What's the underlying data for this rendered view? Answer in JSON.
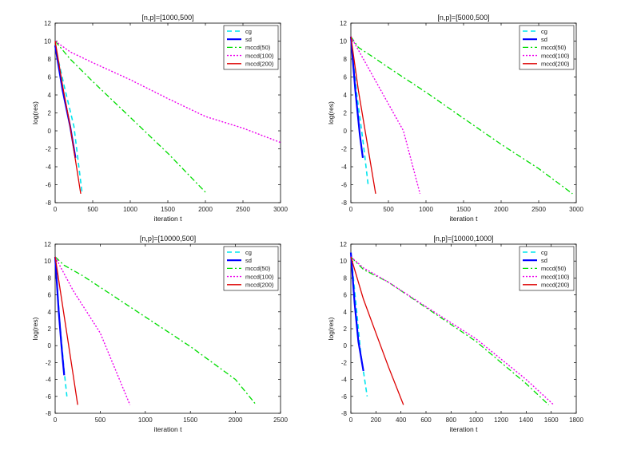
{
  "series_styles": {
    "cg": {
      "color": "#00e5ee",
      "dash": "6,4",
      "width": 1.6
    },
    "sd": {
      "color": "#0000ff",
      "dash": "",
      "width": 2.2
    },
    "mccd(50)": {
      "color": "#00dd00",
      "dash": "7,3,2,3",
      "width": 1.3
    },
    "mccd(100)": {
      "color": "#ee00ee",
      "dash": "2,2",
      "width": 1.4
    },
    "mccd(200)": {
      "color": "#dd0000",
      "dash": "",
      "width": 1.3
    }
  },
  "chart_data": [
    {
      "type": "line",
      "title": "[n,p]=[1000,500]",
      "xlabel": "iteration t",
      "ylabel": "log(res)",
      "xlim": [
        0,
        3000
      ],
      "ylim": [
        -8,
        12
      ],
      "xticks": [
        0,
        500,
        1000,
        1500,
        2000,
        2500,
        3000
      ],
      "yticks": [
        -8,
        -6,
        -4,
        -2,
        0,
        2,
        4,
        6,
        8,
        10,
        12
      ],
      "legend_position": "top-right",
      "series": [
        {
          "name": "cg",
          "x": [
            0,
            120,
            250,
            360
          ],
          "y": [
            9.5,
            5,
            0.5,
            -7
          ]
        },
        {
          "name": "sd",
          "x": [
            0,
            100,
            200,
            270
          ],
          "y": [
            9.5,
            4.5,
            0.5,
            -3
          ]
        },
        {
          "name": "mccd(50)",
          "x": [
            0,
            200,
            500,
            1000,
            1500,
            2020
          ],
          "y": [
            10,
            8,
            5.5,
            1.5,
            -2.5,
            -7
          ]
        },
        {
          "name": "mccd(100)",
          "x": [
            0,
            200,
            500,
            1000,
            1500,
            2000,
            2500,
            3000
          ],
          "y": [
            10,
            8.8,
            7.6,
            5.7,
            3.6,
            1.6,
            0.3,
            -1.3
          ]
        },
        {
          "name": "mccd(200)",
          "x": [
            0,
            100,
            200,
            340
          ],
          "y": [
            10,
            5,
            0.5,
            -7
          ]
        }
      ]
    },
    {
      "type": "line",
      "title": "[n,p]=[5000,500]",
      "xlabel": "iteration t",
      "ylabel": "log(res)",
      "xlim": [
        0,
        3000
      ],
      "ylim": [
        -8,
        12
      ],
      "xticks": [
        0,
        500,
        1000,
        1500,
        2000,
        2500,
        3000
      ],
      "yticks": [
        -8,
        -6,
        -4,
        -2,
        0,
        2,
        4,
        6,
        8,
        10,
        12
      ],
      "legend_position": "top-right",
      "series": [
        {
          "name": "cg",
          "x": [
            0,
            80,
            160,
            230
          ],
          "y": [
            10.5,
            4,
            -1,
            -6
          ]
        },
        {
          "name": "sd",
          "x": [
            0,
            60,
            120,
            160
          ],
          "y": [
            10.5,
            4.5,
            -0.5,
            -3
          ]
        },
        {
          "name": "mccd(50)",
          "x": [
            0,
            100,
            300,
            600,
            1000,
            1500,
            2000,
            2500,
            2950
          ],
          "y": [
            10.5,
            9.3,
            8.2,
            6.5,
            4.3,
            1.4,
            -1.5,
            -4.2,
            -7
          ]
        },
        {
          "name": "mccd(100)",
          "x": [
            0,
            200,
            500,
            700,
            920
          ],
          "y": [
            10.5,
            7.5,
            3,
            0,
            -7
          ]
        },
        {
          "name": "mccd(200)",
          "x": [
            0,
            100,
            200,
            330
          ],
          "y": [
            10.5,
            4.5,
            -0.5,
            -7
          ]
        }
      ]
    },
    {
      "type": "line",
      "title": "[n,p]=[10000,500]",
      "xlabel": "iteration t",
      "ylabel": "log(res)",
      "xlim": [
        0,
        2500
      ],
      "ylim": [
        -8,
        12
      ],
      "xticks": [
        0,
        500,
        1000,
        1500,
        2000,
        2500
      ],
      "yticks": [
        -8,
        -6,
        -4,
        -2,
        0,
        2,
        4,
        6,
        8,
        10,
        12
      ],
      "legend_position": "top-right",
      "series": [
        {
          "name": "cg",
          "x": [
            0,
            50,
            100,
            130
          ],
          "y": [
            10.5,
            3,
            -3,
            -6
          ]
        },
        {
          "name": "sd",
          "x": [
            0,
            40,
            70,
            100
          ],
          "y": [
            10.5,
            4,
            0,
            -3.5
          ]
        },
        {
          "name": "mccd(50)",
          "x": [
            0,
            100,
            300,
            600,
            1000,
            1500,
            2000,
            2230
          ],
          "y": [
            10.5,
            9.5,
            8.3,
            6.2,
            3.4,
            -0.1,
            -4,
            -7
          ]
        },
        {
          "name": "mccd(100)",
          "x": [
            0,
            200,
            500,
            830
          ],
          "y": [
            10.5,
            6.5,
            1.5,
            -7
          ]
        },
        {
          "name": "mccd(200)",
          "x": [
            0,
            100,
            200,
            250
          ],
          "y": [
            10.5,
            3.5,
            -3.5,
            -7
          ]
        }
      ]
    },
    {
      "type": "line",
      "title": "[n,p]=[10000,1000]",
      "xlabel": "iteration t",
      "ylabel": "log(res)",
      "xlim": [
        0,
        1800
      ],
      "ylim": [
        -8,
        12
      ],
      "xticks": [
        0,
        200,
        400,
        600,
        800,
        1000,
        1200,
        1400,
        1600,
        1800
      ],
      "yticks": [
        -8,
        -6,
        -4,
        -2,
        0,
        2,
        4,
        6,
        8,
        10,
        12
      ],
      "legend_position": "top-right",
      "series": [
        {
          "name": "cg",
          "x": [
            0,
            40,
            80,
            130
          ],
          "y": [
            11,
            5,
            -1,
            -6
          ]
        },
        {
          "name": "sd",
          "x": [
            0,
            30,
            60,
            100
          ],
          "y": [
            11,
            5,
            0.5,
            -3
          ]
        },
        {
          "name": "mccd(50)",
          "x": [
            0,
            100,
            300,
            600,
            1000,
            1400,
            1580
          ],
          "y": [
            10.5,
            9,
            7.5,
            4.5,
            0.5,
            -4.5,
            -7
          ]
        },
        {
          "name": "mccd(100)",
          "x": [
            0,
            100,
            300,
            600,
            1000,
            1400,
            1620
          ],
          "y": [
            10.5,
            9.2,
            7.5,
            4.6,
            0.8,
            -4,
            -7
          ]
        },
        {
          "name": "mccd(200)",
          "x": [
            0,
            100,
            200,
            300,
            420
          ],
          "y": [
            10.5,
            5.5,
            1.5,
            -2.5,
            -7
          ]
        }
      ]
    }
  ]
}
